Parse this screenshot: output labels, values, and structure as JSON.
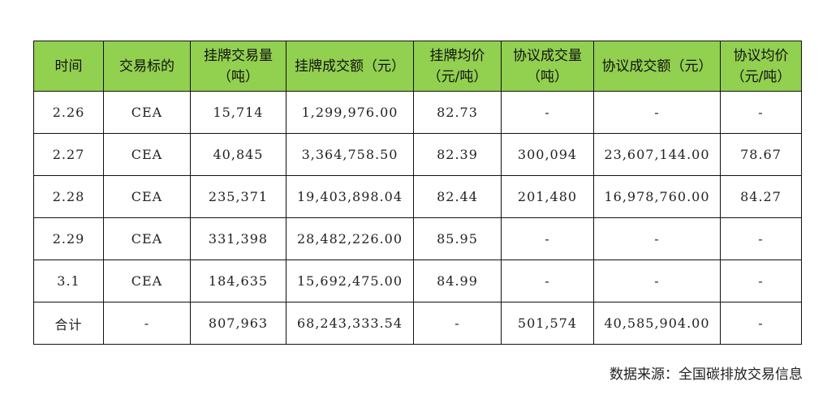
{
  "table": {
    "header_bg": "#92d050",
    "headers": [
      {
        "line1": "时间",
        "line2": ""
      },
      {
        "line1": "交易标的",
        "line2": ""
      },
      {
        "line1": "挂牌交易量",
        "line2": "（吨）"
      },
      {
        "line1": "挂牌成交额（元）",
        "line2": ""
      },
      {
        "line1": "挂牌均价",
        "line2": "（元/吨）"
      },
      {
        "line1": "协议成交量",
        "line2": "（吨）"
      },
      {
        "line1": "协议成交额（元）",
        "line2": ""
      },
      {
        "line1": "协议均价",
        "line2": "（元/吨）"
      }
    ],
    "rows": [
      [
        "2.26",
        "CEA",
        "15,714",
        "1,299,976.00",
        "82.73",
        "-",
        "-",
        "-"
      ],
      [
        "2.27",
        "CEA",
        "40,845",
        "3,364,758.50",
        "82.39",
        "300,094",
        "23,607,144.00",
        "78.67"
      ],
      [
        "2.28",
        "CEA",
        "235,371",
        "19,403,898.04",
        "82.44",
        "201,480",
        "16,978,760.00",
        "84.27"
      ],
      [
        "2.29",
        "CEA",
        "331,398",
        "28,482,226.00",
        "85.95",
        "-",
        "-",
        "-"
      ],
      [
        "3.1",
        "CEA",
        "184,635",
        "15,692,475.00",
        "84.99",
        "-",
        "-",
        "-"
      ],
      [
        "合计",
        "-",
        "807,963",
        "68,243,333.54",
        "-",
        "501,574",
        "40,585,904.00",
        "-"
      ]
    ]
  },
  "source_note": "数据来源：全国碳排放交易信息"
}
